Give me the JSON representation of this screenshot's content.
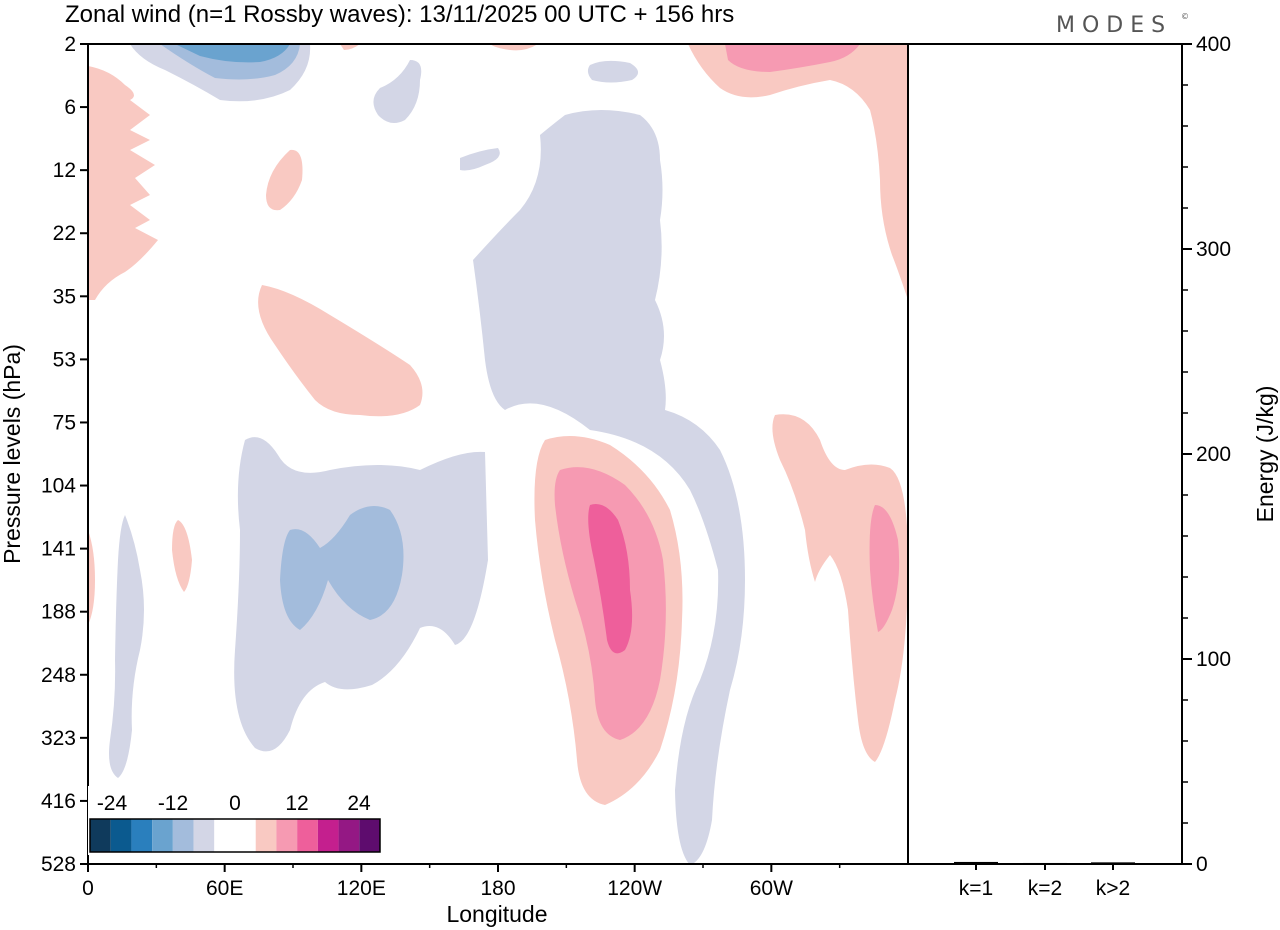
{
  "title": "Zonal wind (n=1 Rossby waves):  13/11/2025  00 UTC  + 156 hrs",
  "brand": "MODES",
  "brand_mark": "©",
  "chart_data": [
    {
      "type": "heatmap",
      "subtype": "contour",
      "xlabel": "Longitude",
      "ylabel": "Pressure levels (hPa)",
      "x_ticks": [
        "0",
        "60E",
        "120E",
        "180",
        "120W",
        "60W"
      ],
      "y_ticks": [
        "2",
        "6",
        "12",
        "22",
        "35",
        "53",
        "75",
        "104",
        "141",
        "188",
        "248",
        "323",
        "416",
        "528"
      ],
      "y_range": [
        2,
        528
      ],
      "colorbar": {
        "labels": [
          "-24",
          "-12",
          "0",
          "12",
          "24"
        ],
        "colors": [
          "#0f3a5c",
          "#0b5a8f",
          "#2a7fbd",
          "#6aa3cf",
          "#a3bcdc",
          "#d3d6e6",
          "#ffffff",
          "#ffffff",
          "#f9c9c2",
          "#f69ab2",
          "#ee5f9b",
          "#c41f8e",
          "#941884",
          "#5e0c6e"
        ]
      },
      "features": [
        {
          "label": "negative core",
          "value_range": "-12 to -8",
          "x_deg": [
            108,
            132
          ],
          "y_hpa": [
            115,
            210
          ]
        },
        {
          "label": "negative core",
          "value_range": "-12 to -8",
          "x_deg": [
            86,
            102
          ],
          "y_hpa": [
            120,
            220
          ]
        },
        {
          "label": "negative band",
          "value_range": "-4 to 0",
          "x_deg": [
            68,
            175
          ],
          "y_hpa": [
            80,
            360
          ]
        },
        {
          "label": "positive core",
          "value_range": "16 to 20",
          "x_deg": [
            222,
            235
          ],
          "y_hpa": [
            110,
            220
          ]
        },
        {
          "label": "positive band",
          "value_range": "4 to 8",
          "x_deg": [
            200,
            255
          ],
          "y_hpa": [
            80,
            450
          ]
        },
        {
          "label": "negative trough",
          "value_range": "-4 to 0",
          "x_deg": [
            170,
            290
          ],
          "y_hpa": [
            12,
            528
          ]
        },
        {
          "label": "positive region",
          "value_range": "4 to 12",
          "x_deg": [
            300,
            360
          ],
          "y_hpa": [
            80,
            370
          ]
        },
        {
          "label": "negative top",
          "value_range": "-12 to -4",
          "x_deg": [
            20,
            95
          ],
          "y_hpa": [
            2,
            5
          ]
        },
        {
          "label": "positive top",
          "value_range": "0 to 12",
          "x_deg": [
            270,
            360
          ],
          "y_hpa": [
            2,
            35
          ]
        }
      ]
    },
    {
      "type": "bar",
      "ylabel": "Energy (J/kg)",
      "categories": [
        "k=1",
        "k=2",
        "k>2"
      ],
      "values": [
        1,
        0.5,
        0.8
      ],
      "ylim": [
        0,
        400
      ],
      "y_ticks": [
        "0",
        "100",
        "200",
        "300",
        "400"
      ]
    }
  ]
}
